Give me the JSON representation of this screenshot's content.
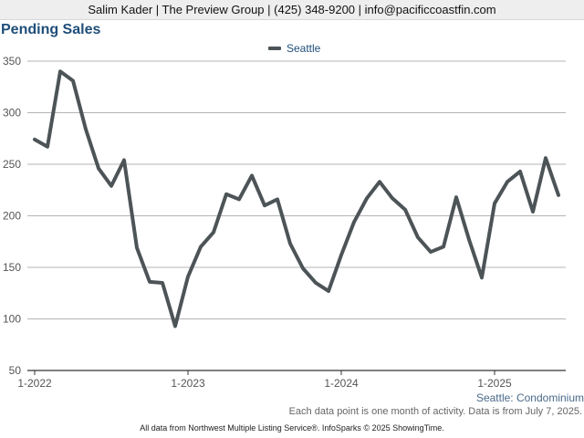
{
  "header": {
    "contact": "Salim Kader | The Preview Group | (425) 348-9200 | info@pacificcoastfin.com"
  },
  "chart_data": {
    "type": "line",
    "title": "Pending Sales",
    "xlabel": "",
    "ylabel": "",
    "ylim": [
      50,
      350
    ],
    "yticks": [
      50,
      100,
      150,
      200,
      250,
      300,
      350
    ],
    "grid": true,
    "legend_position": "top-center",
    "x_tick_labels": [
      "1-2022",
      "1-2023",
      "1-2024",
      "1-2025"
    ],
    "x": [
      "2022-01",
      "2022-02",
      "2022-03",
      "2022-04",
      "2022-05",
      "2022-06",
      "2022-07",
      "2022-08",
      "2022-09",
      "2022-10",
      "2022-11",
      "2022-12",
      "2023-01",
      "2023-02",
      "2023-03",
      "2023-04",
      "2023-05",
      "2023-06",
      "2023-07",
      "2023-08",
      "2023-09",
      "2023-10",
      "2023-11",
      "2023-12",
      "2024-01",
      "2024-02",
      "2024-03",
      "2024-04",
      "2024-05",
      "2024-06",
      "2024-07",
      "2024-08",
      "2024-09",
      "2024-10",
      "2024-11",
      "2024-12",
      "2025-01",
      "2025-02",
      "2025-03",
      "2025-04",
      "2025-05",
      "2025-06"
    ],
    "series": [
      {
        "name": "Seattle",
        "color": "#4d5457",
        "values": [
          274,
          267,
          340,
          331,
          284,
          246,
          229,
          254,
          169,
          136,
          135,
          93,
          141,
          170,
          184,
          221,
          216,
          239,
          210,
          216,
          173,
          149,
          135,
          127,
          162,
          194,
          217,
          233,
          217,
          206,
          179,
          165,
          170,
          218,
          177,
          140,
          212,
          233,
          243,
          204,
          256,
          220
        ]
      }
    ]
  },
  "series_caption": "Seattle: Condominium",
  "note": "Each data point is one month of activity. Data is from July 7, 2025.",
  "footer": "All data from Northwest Multiple Listing Service®. InfoSparks © 2025 ShowingTime."
}
